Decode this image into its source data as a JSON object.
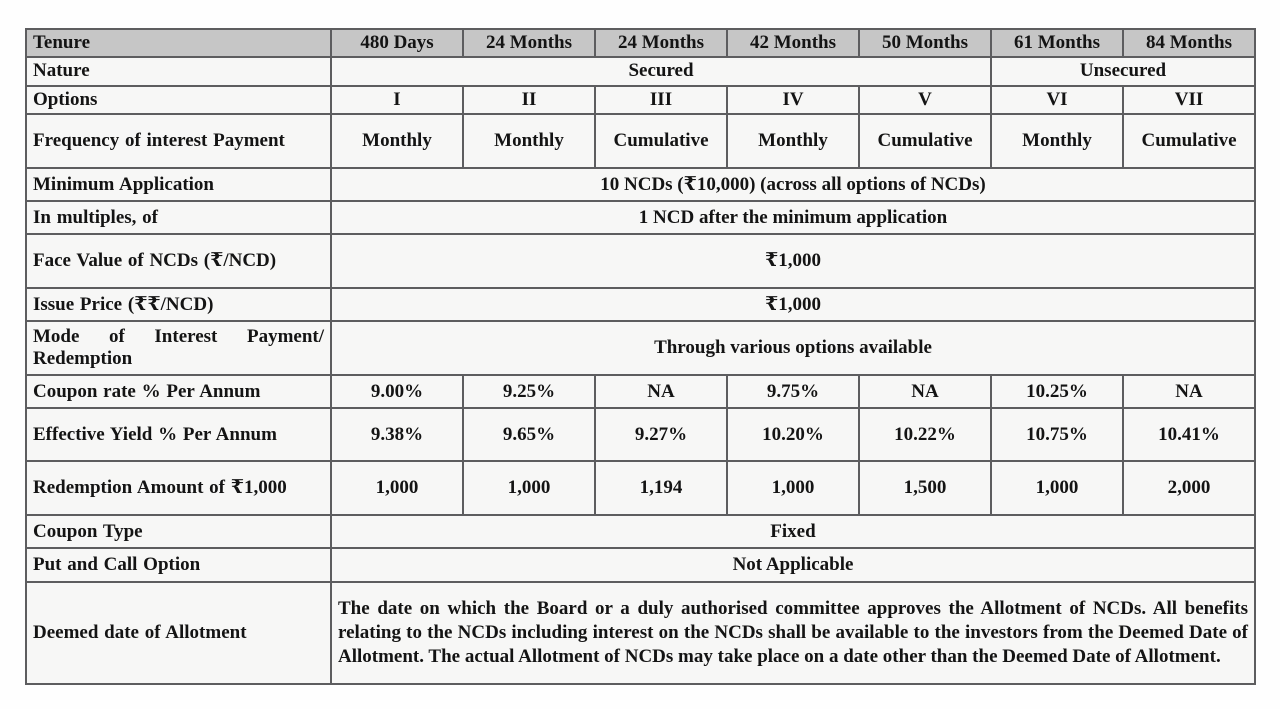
{
  "colors": {
    "header_bg": "#c6c6c6",
    "body_bg": "#f7f7f6",
    "border": "#5d5d5f",
    "text": "#141414"
  },
  "table": {
    "tenure_row": {
      "label": "Tenure",
      "cells": [
        "480 Days",
        "24 Months",
        "24 Months",
        "42 Months",
        "50 Months",
        "61 Months",
        "84 Months"
      ]
    },
    "nature_row": {
      "label": "Nature",
      "secured": "Secured",
      "unsecured": "Unsecured"
    },
    "options_row": {
      "label": "Options",
      "cells": [
        "I",
        "II",
        "III",
        "IV",
        "V",
        "VI",
        "VII"
      ]
    },
    "frequency_row": {
      "label": "Frequency of interest Payment",
      "cells": [
        "Monthly",
        "Monthly",
        "Cumulative",
        "Monthly",
        "Cumulative",
        "Monthly",
        "Cumulative"
      ]
    },
    "minimum_application_row": {
      "label": "Minimum Application",
      "value": "10 NCDs (₹10,000) (across all options of NCDs)"
    },
    "in_multiples_row": {
      "label": "In multiples, of",
      "value": "1 NCD after the minimum application"
    },
    "face_value_row": {
      "label": "Face Value of NCDs (₹/NCD)",
      "value": "₹1,000"
    },
    "issue_price_row": {
      "label": "Issue Price (₹₹/NCD)",
      "value": "₹1,000"
    },
    "mode_row": {
      "label": "Mode of Interest Payment/ Redemption",
      "value": "Through various options available"
    },
    "coupon_rate_row": {
      "label": "Coupon rate % Per Annum",
      "cells": [
        "9.00%",
        "9.25%",
        "NA",
        "9.75%",
        "NA",
        "10.25%",
        "NA"
      ]
    },
    "effective_yield_row": {
      "label": "Effective Yield % Per Annum",
      "cells": [
        "9.38%",
        "9.65%",
        "9.27%",
        "10.20%",
        "10.22%",
        "10.75%",
        "10.41%"
      ]
    },
    "redemption_row": {
      "label": "Redemption Amount of ₹1,000",
      "cells": [
        "1,000",
        "1,000",
        "1,194",
        "1,000",
        "1,500",
        "1,000",
        "2,000"
      ]
    },
    "coupon_type_row": {
      "label": "Coupon Type",
      "value": "Fixed"
    },
    "put_call_row": {
      "label": "Put and Call Option",
      "value": "Not Applicable"
    },
    "deemed_date_row": {
      "label": "Deemed date of Allotment",
      "value": "The date on which the Board or a duly authorised committee approves the Allotment of NCDs. All benefits relating to the NCDs including interest on the NCDs shall be available to the investors from the Deemed Date of Allotment. The actual Allotment of NCDs may take place on a date other than the Deemed Date of Allotment."
    }
  }
}
